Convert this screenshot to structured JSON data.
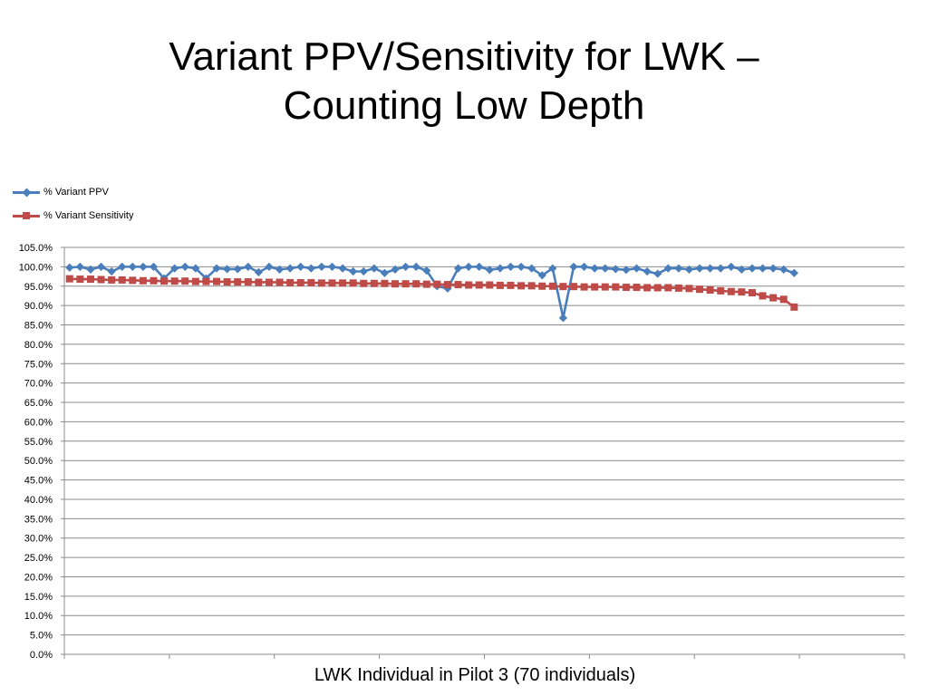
{
  "slide": {
    "title_line1": "Variant PPV/Sensitivity for LWK –",
    "title_line2": "Counting Low Depth"
  },
  "chart_data": {
    "type": "line",
    "title": "",
    "xlabel": "LWK Individual in Pilot 3 (70 individuals)",
    "ylabel": "",
    "ylim": [
      0,
      105
    ],
    "y_tick_step": 5,
    "y_tick_labels": [
      "0.0%",
      "5.0%",
      "10.0%",
      "15.0%",
      "20.0%",
      "25.0%",
      "30.0%",
      "35.0%",
      "40.0%",
      "45.0%",
      "50.0%",
      "55.0%",
      "60.0%",
      "65.0%",
      "70.0%",
      "75.0%",
      "80.0%",
      "85.0%",
      "90.0%",
      "95.0%",
      "100.0%",
      "105.0%"
    ],
    "x": [
      1,
      2,
      3,
      4,
      5,
      6,
      7,
      8,
      9,
      10,
      11,
      12,
      13,
      14,
      15,
      16,
      17,
      18,
      19,
      20,
      21,
      22,
      23,
      24,
      25,
      26,
      27,
      28,
      29,
      30,
      31,
      32,
      33,
      34,
      35,
      36,
      37,
      38,
      39,
      40,
      41,
      42,
      43,
      44,
      45,
      46,
      47,
      48,
      49,
      50,
      51,
      52,
      53,
      54,
      55,
      56,
      57,
      58,
      59,
      60,
      61,
      62,
      63,
      64,
      65,
      66,
      67,
      68,
      69,
      70
    ],
    "grid": true,
    "legend_position": "top-left",
    "series": [
      {
        "name": "% Variant PPV",
        "color": "#4a7ebb",
        "marker": "diamond",
        "values": [
          99.8,
          100.0,
          99.3,
          100.0,
          98.8,
          100.0,
          100.0,
          100.0,
          100.0,
          97.0,
          99.6,
          100.0,
          99.6,
          97.0,
          99.6,
          99.4,
          99.4,
          100.0,
          98.6,
          100.0,
          99.3,
          99.6,
          100.0,
          99.6,
          100.0,
          100.0,
          99.6,
          98.8,
          98.8,
          99.6,
          98.4,
          99.3,
          100.0,
          100.0,
          99.0,
          95.0,
          94.4,
          99.6,
          100.0,
          100.0,
          99.2,
          99.6,
          100.0,
          100.0,
          99.6,
          97.8,
          99.6,
          86.8,
          100.0,
          100.0,
          99.6,
          99.6,
          99.4,
          99.2,
          99.6,
          98.8,
          98.2,
          99.6,
          99.6,
          99.3,
          99.6,
          99.6,
          99.6,
          100.0,
          99.3,
          99.6,
          99.6,
          99.6,
          99.3,
          98.4
        ]
      },
      {
        "name": "% Variant Sensitivity",
        "color": "#be4b48",
        "marker": "square",
        "values": [
          96.9,
          96.8,
          96.8,
          96.7,
          96.6,
          96.6,
          96.5,
          96.4,
          96.4,
          96.3,
          96.3,
          96.3,
          96.2,
          96.2,
          96.2,
          96.1,
          96.1,
          96.1,
          96.0,
          96.0,
          96.0,
          95.9,
          95.9,
          95.9,
          95.8,
          95.8,
          95.8,
          95.8,
          95.7,
          95.7,
          95.7,
          95.6,
          95.6,
          95.6,
          95.5,
          95.5,
          95.4,
          95.4,
          95.3,
          95.3,
          95.3,
          95.2,
          95.2,
          95.1,
          95.1,
          95.0,
          95.0,
          94.9,
          94.9,
          94.8,
          94.8,
          94.8,
          94.8,
          94.7,
          94.7,
          94.6,
          94.6,
          94.6,
          94.5,
          94.4,
          94.2,
          94.0,
          93.8,
          93.6,
          93.5,
          93.3,
          92.5,
          92.0,
          91.6,
          89.6
        ]
      }
    ]
  }
}
